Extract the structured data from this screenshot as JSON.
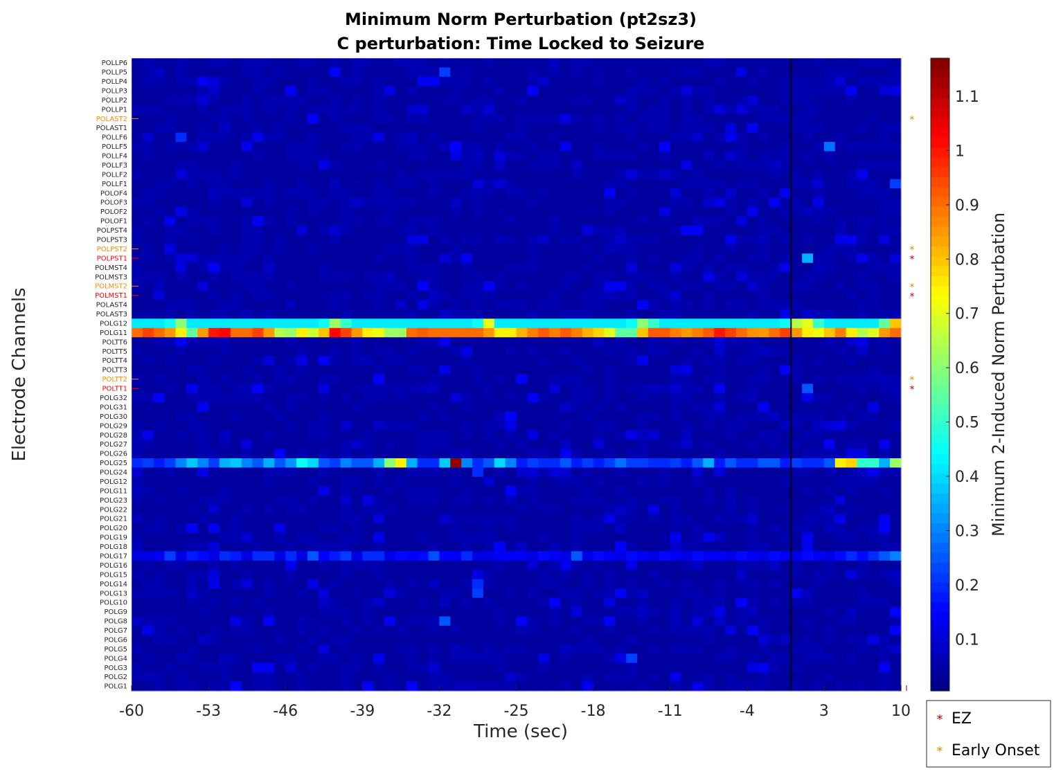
{
  "chart_data": {
    "type": "heatmap",
    "title": "Minimum Norm Perturbation (pt2sz3)",
    "subtitle": "C perturbation:  Time Locked to Seizure",
    "xlabel": "Time (sec)",
    "ylabel": "Electrode Channels",
    "colorbar_label": "Minimum 2-Induced Norm Perturbation",
    "colormap": "jet",
    "clim": [
      0.005,
      1.17
    ],
    "colorbar_ticks": [
      0.1,
      0.2,
      0.3,
      0.4,
      0.5,
      0.6,
      0.7,
      0.8,
      0.9,
      1,
      1.1
    ],
    "x_ticks": [
      -60,
      -53,
      -46,
      -39,
      -32,
      -25,
      -18,
      -11,
      -4,
      3,
      10
    ],
    "xlim": [
      -60,
      10
    ],
    "time_step_sec": 1,
    "seizure_onset_sec": 0,
    "background_value": 0.04,
    "channels": [
      "POLLP6",
      "POLLP5",
      "POLLP4",
      "POLLP3",
      "POLLP2",
      "POLLP1",
      "POLAST2",
      "POLAST1",
      "POLLF6",
      "POLLF5",
      "POLLF4",
      "POLLF3",
      "POLLF2",
      "POLLF1",
      "POLOF4",
      "POLOF3",
      "POLOF2",
      "POLOF1",
      "POLPST4",
      "POLPST3",
      "POLPST2",
      "POLPST1",
      "POLMST4",
      "POLMST3",
      "POLMST2",
      "POLMST1",
      "POLAST4",
      "POLAST3",
      "POLG12",
      "POLG11",
      "POLTT6",
      "POLTT5",
      "POLTT4",
      "POLTT3",
      "POLTT2",
      "POLTT1",
      "POLG32",
      "POLG31",
      "POLG30",
      "POLG29",
      "POLG28",
      "POLG27",
      "POLG26",
      "POLG25",
      "POLG24",
      "POLG12",
      "POLG11",
      "POLG23",
      "POLG22",
      "POLG21",
      "POLG20",
      "POLG19",
      "POLG18",
      "POLG17",
      "POLG16",
      "POLG15",
      "POLG14",
      "POLG13",
      "POLG10",
      "POLG9",
      "POLG8",
      "POLG7",
      "POLG6",
      "POLG5",
      "POLG4",
      "POLG3",
      "POLG2",
      "POLG1"
    ],
    "channel_tags": {
      "POLAST2": "early",
      "POLPST2": "early",
      "POLPST1": "ez",
      "POLMST2": "early",
      "POLMST1": "ez",
      "POLTT2": "early",
      "POLTT1": "ez"
    },
    "rows": [
      {
        "channel_index": 28,
        "values": [
          0.42,
          0.42,
          0.42,
          0.42,
          0.42,
          0.42,
          0.45,
          0.5,
          0.6,
          0.8,
          0.42,
          0.42,
          0.42,
          0.42,
          0.42,
          0.42,
          0.42,
          0.42,
          0.42,
          0.42,
          0.42,
          0.42,
          0.42,
          0.42,
          0.42,
          0.42,
          0.42,
          0.42,
          0.42,
          0.42,
          0.42,
          0.42,
          0.42,
          0.42,
          0.42,
          0.42,
          0.45,
          0.55,
          0.62,
          0.55,
          0.5,
          0.42,
          0.42,
          0.42,
          0.42,
          0.42,
          0.42,
          0.42,
          0.42,
          0.42,
          0.42,
          0.42,
          0.42,
          0.42,
          0.42,
          0.42,
          0.42,
          0.42,
          0.42,
          0.42,
          0.42,
          0.42,
          0.42,
          0.42,
          0.42,
          0.45,
          0.55,
          0.62,
          0.7,
          0.8,
          0.42,
          0.42,
          0.42,
          0.42,
          0.42,
          0.42,
          0.42,
          0.42,
          0.42,
          0.42,
          0.42,
          0.42,
          0.42,
          0.42,
          0.42,
          0.42,
          0.42,
          0.42,
          0.42,
          0.42,
          0.42,
          0.42,
          0.42,
          0.42,
          0.42,
          0.45,
          0.5,
          0.6,
          0.65,
          0.6,
          0.5,
          0.42,
          0.42,
          0.42,
          0.42,
          0.42,
          0.42,
          0.42,
          0.42,
          0.42,
          0.42,
          0.42,
          0.42,
          0.42,
          0.42,
          0.42,
          0.42,
          0.42,
          0.42,
          0.42,
          0.42,
          0.42,
          0.42,
          0.42,
          0.42,
          0.45,
          0.55,
          0.65,
          0.75,
          0.7,
          0.6,
          0.5,
          0.42,
          0.42,
          0.42,
          0.42,
          0.42,
          0.42,
          0.42,
          0.42,
          0.42,
          0.42,
          0.42,
          0.45,
          0.55,
          0.65,
          0.8,
          0.55,
          0.42
        ]
      },
      {
        "channel_index": 29,
        "values": [
          0.9,
          0.92,
          0.95,
          0.95,
          0.9,
          0.88,
          0.85,
          0.8,
          0.75,
          0.6,
          0.55,
          0.7,
          0.85,
          0.92,
          1.0,
          1.05,
          1.02,
          0.95,
          0.9,
          0.88,
          0.9,
          0.92,
          0.95,
          0.92,
          0.85,
          0.75,
          0.65,
          0.6,
          0.62,
          0.7,
          0.75,
          0.72,
          0.68,
          0.7,
          0.8,
          0.92,
          1.0,
          1.02,
          1.0,
          0.95,
          0.9,
          0.85,
          0.8,
          0.75,
          0.7,
          0.72,
          0.75,
          0.62,
          0.55,
          0.62,
          0.72,
          0.9,
          0.95,
          0.92,
          0.9,
          0.9,
          0.9,
          0.9,
          0.9,
          0.9,
          0.9,
          0.9,
          0.9,
          0.9,
          0.9,
          0.85,
          0.8,
          0.75,
          0.72,
          0.75,
          0.78,
          0.8,
          0.82,
          0.85,
          0.88,
          0.9,
          0.92,
          0.9,
          0.88,
          0.9,
          0.92,
          0.9,
          0.88,
          0.85,
          0.82,
          0.8,
          0.78,
          0.75,
          0.7,
          0.65,
          0.55,
          0.5,
          0.55,
          0.65,
          0.8,
          0.9,
          0.92,
          0.95,
          0.92,
          0.9,
          0.88,
          0.86,
          0.85,
          0.85,
          0.88,
          0.9,
          0.92,
          0.95,
          0.98,
          1.0,
          0.98,
          0.95,
          0.92,
          0.9,
          0.88,
          0.86,
          0.85,
          0.85,
          0.88,
          0.9,
          0.95,
          0.95,
          0.9,
          0.85,
          0.8,
          0.75,
          0.7,
          0.72,
          0.75,
          0.8,
          0.85,
          0.88,
          0.82,
          0.75,
          0.7,
          0.65,
          0.6,
          0.7,
          0.8,
          0.85,
          0.88,
          0.9,
          0.92,
          0.92
        ]
      },
      {
        "channel_index": 43,
        "values": [
          0.2,
          0.2,
          0.22,
          0.2,
          0.18,
          0.2,
          0.22,
          0.25,
          0.3,
          0.35,
          0.38,
          0.35,
          0.3,
          0.25,
          0.22,
          0.25,
          0.35,
          0.42,
          0.38,
          0.35,
          0.3,
          0.25,
          0.25,
          0.3,
          0.35,
          0.3,
          0.25,
          0.28,
          0.32,
          0.35,
          0.45,
          0.8,
          0.4,
          0.3,
          0.25,
          0.22,
          0.2,
          0.22,
          0.25,
          0.3,
          0.28,
          0.25,
          0.22,
          0.25,
          0.3,
          0.35,
          0.45,
          0.6,
          0.7,
          0.75,
          0.5,
          0.35,
          0.25,
          0.2,
          0.18,
          0.2,
          0.3,
          0.38,
          0.5,
          1.15,
          0.45,
          0.3,
          0.25,
          0.2,
          0.22,
          0.25,
          0.3,
          0.4,
          0.45,
          0.3,
          0.22,
          0.2,
          0.18,
          0.2,
          0.22,
          0.25,
          0.2,
          0.18,
          0.2,
          0.22,
          0.25,
          0.2,
          0.18,
          0.2,
          0.22,
          0.2,
          0.18,
          0.2,
          0.22,
          0.25,
          0.28,
          0.25,
          0.22,
          0.2,
          0.22,
          0.25,
          0.2,
          0.18,
          0.2,
          0.25,
          0.22,
          0.2,
          0.18,
          0.2,
          0.25,
          0.3,
          0.35,
          0.25,
          0.2,
          0.18,
          0.2,
          0.25,
          0.22,
          0.2,
          0.18,
          0.2,
          0.22,
          0.25,
          0.3,
          0.25,
          0.2,
          0.18,
          0.2,
          0.22,
          0.25,
          0.2,
          0.18,
          0.2,
          0.22,
          0.25,
          0.5,
          0.75,
          0.85,
          0.78,
          0.6,
          0.5,
          0.45,
          0.5,
          0.4,
          0.35,
          0.55,
          0.62,
          0.45,
          0.5
        ]
      },
      {
        "channel_index": 53,
        "values": [
          0.12,
          0.12,
          0.12,
          0.12,
          0.14,
          0.2,
          0.22,
          0.18,
          0.12,
          0.14,
          0.18,
          0.2,
          0.16,
          0.14,
          0.12,
          0.16,
          0.2,
          0.24,
          0.18,
          0.14,
          0.12,
          0.16,
          0.2,
          0.22,
          0.2,
          0.14,
          0.12,
          0.15,
          0.2,
          0.14,
          0.12,
          0.15,
          0.25,
          0.24,
          0.15,
          0.12,
          0.14,
          0.18,
          0.2,
          0.22,
          0.15,
          0.12,
          0.15,
          0.2,
          0.25,
          0.2,
          0.15,
          0.12,
          0.14,
          0.16,
          0.2,
          0.15,
          0.12,
          0.16,
          0.2,
          0.24,
          0.2,
          0.15,
          0.12,
          0.14,
          0.25,
          0.2,
          0.15,
          0.12,
          0.14,
          0.12,
          0.16,
          0.14,
          0.12,
          0.14,
          0.16,
          0.12,
          0.14,
          0.16,
          0.12,
          0.14,
          0.16,
          0.12,
          0.14,
          0.16,
          0.12,
          0.14,
          0.25,
          0.16,
          0.12,
          0.14,
          0.16,
          0.12,
          0.14,
          0.16,
          0.12,
          0.14,
          0.16,
          0.12,
          0.14,
          0.16,
          0.12,
          0.14,
          0.16,
          0.12,
          0.14,
          0.16,
          0.12,
          0.14,
          0.16,
          0.12,
          0.14,
          0.16,
          0.12,
          0.14,
          0.16,
          0.12,
          0.14,
          0.16,
          0.12,
          0.14,
          0.16,
          0.12,
          0.14,
          0.16,
          0.12,
          0.14,
          0.16,
          0.12,
          0.14,
          0.16,
          0.12,
          0.14,
          0.16,
          0.12,
          0.14,
          0.16,
          0.28,
          0.2,
          0.15,
          0.16,
          0.18,
          0.2,
          0.2,
          0.25,
          0.3,
          0.3,
          0.3,
          0.6
        ]
      }
    ],
    "hotspots": [
      {
        "channel_index": 1,
        "t": -32,
        "value": 0.22
      },
      {
        "channel_index": 9,
        "t": 3,
        "value": 0.28
      },
      {
        "channel_index": 8,
        "t": -56,
        "value": 0.2
      },
      {
        "channel_index": 13,
        "t": 9,
        "value": 0.22
      },
      {
        "channel_index": 21,
        "t": 1,
        "value": 0.35
      },
      {
        "channel_index": 36,
        "t": 1,
        "value": 0.12
      },
      {
        "channel_index": 35,
        "t": 1,
        "value": 0.25
      },
      {
        "channel_index": 44,
        "t": -29,
        "value": 0.2
      },
      {
        "channel_index": 50,
        "t": 8,
        "value": 0.15
      },
      {
        "channel_index": 56,
        "t": -29,
        "value": 0.2
      },
      {
        "channel_index": 57,
        "t": -29,
        "value": 0.22
      },
      {
        "channel_index": 60,
        "t": -32,
        "value": 0.25
      },
      {
        "channel_index": 64,
        "t": -15,
        "value": 0.22
      }
    ],
    "legend": {
      "position": "bottom-right",
      "entries": [
        {
          "label": "EZ",
          "color": "#c00000"
        },
        {
          "label": "Early Onset",
          "color": "#e08a00"
        }
      ]
    }
  },
  "colors": {
    "ez": "#ff0000",
    "early": "#ff8c00",
    "ez_marker": "#c00000",
    "early_marker": "#e08a00",
    "onset_line": "#000000"
  }
}
